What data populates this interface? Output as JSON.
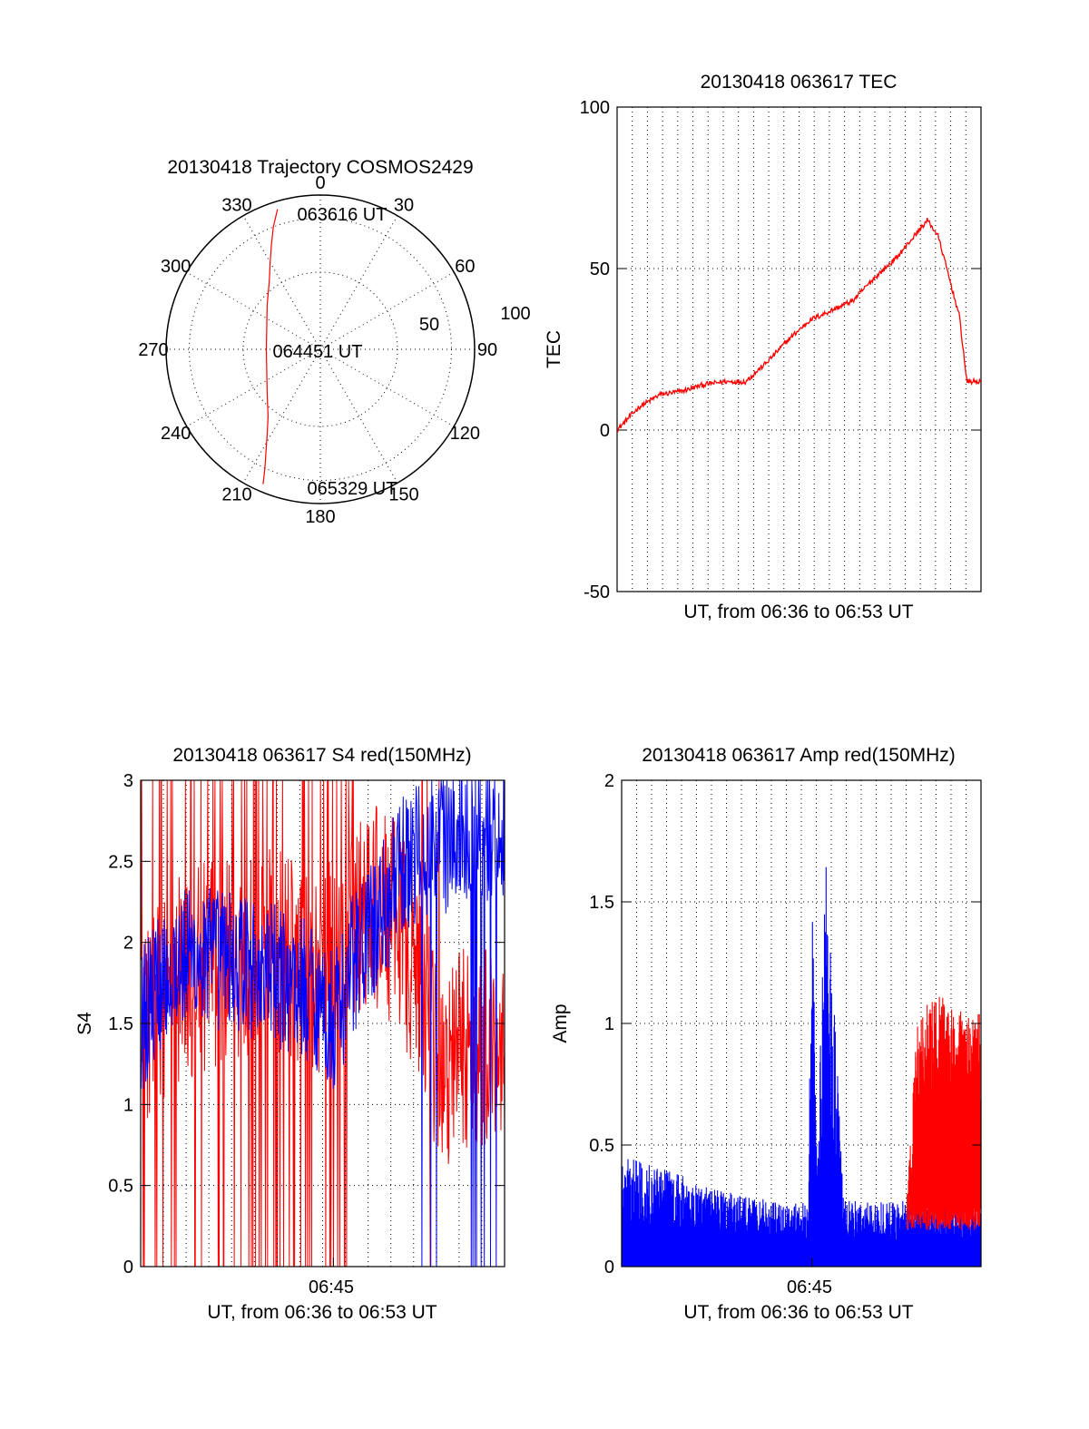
{
  "colors": {
    "red": "#ff0000",
    "blue": "#0000ff",
    "axis": "#000000"
  },
  "chart_data": [
    {
      "id": "trajectory",
      "type": "polar",
      "title": "20130418 Trajectory COSMOS2429",
      "angle_labels": [
        "0",
        "30",
        "60",
        "90",
        "120",
        "150",
        "180",
        "210",
        "240",
        "270",
        "300",
        "330"
      ],
      "radial_ticks": [
        "50",
        "100"
      ],
      "rlim": [
        0,
        100
      ],
      "grid": true,
      "series": [
        {
          "color": "red",
          "points": [
            [
              343,
              95
            ],
            [
              339,
              85
            ],
            [
              335,
              75
            ],
            [
              330,
              65
            ],
            [
              323,
              55
            ],
            [
              310,
              45
            ],
            [
              290,
              37
            ],
            [
              270,
              35
            ],
            [
              250,
              37
            ],
            [
              230,
              45
            ],
            [
              218,
              55
            ],
            [
              212,
              65
            ],
            [
              208,
              75
            ],
            [
              205,
              85
            ],
            [
              203,
              95
            ]
          ]
        }
      ],
      "annotations": [
        {
          "text": "063616 UT",
          "az": 8,
          "el": 85
        },
        {
          "text": "064451 UT",
          "az": 269,
          "el": 72
        },
        {
          "text": "065329 UT",
          "az": 172,
          "el": 82
        }
      ]
    },
    {
      "id": "tec",
      "type": "line",
      "title": "20130418 063617 TEC",
      "xlabel": "UT, from 06:36 to 06:53 UT",
      "ylabel": "TEC",
      "xlim": [
        "06:36",
        "06:53"
      ],
      "ylim": [
        -50,
        100
      ],
      "yticks": [
        "-50",
        "0",
        "50",
        "100"
      ],
      "grid": true,
      "series": [
        {
          "color": "red",
          "points": [
            [
              "06:36",
              0
            ],
            [
              "06:37",
              7
            ],
            [
              "06:38",
              11
            ],
            [
              "06:39",
              12
            ],
            [
              "06:40",
              14
            ],
            [
              "06:41",
              15
            ],
            [
              "06:42",
              15
            ],
            [
              "06:43",
              21
            ],
            [
              "06:44",
              28
            ],
            [
              "06:45",
              34
            ],
            [
              "06:46",
              37
            ],
            [
              "06:47",
              40
            ],
            [
              "06:48",
              47
            ],
            [
              "06:49",
              53
            ],
            [
              "06:50",
              61
            ],
            [
              "06:50:30",
              65
            ],
            [
              "06:51",
              60
            ],
            [
              "06:52",
              35
            ],
            [
              "06:52:20",
              15
            ],
            [
              "06:53",
              15
            ]
          ]
        }
      ]
    },
    {
      "id": "s4",
      "type": "line",
      "title": "20130418 063617 S4 red(150MHz)",
      "xlabel": "UT, from 06:36 to 06:53 UT",
      "ylabel": "S4",
      "xlim": [
        "06:36",
        "06:53"
      ],
      "ylim": [
        0,
        3
      ],
      "yticks": [
        "0",
        "0.5",
        "1",
        "1.5",
        "2",
        "2.5",
        "3"
      ],
      "xticks": [
        "06:45"
      ],
      "grid": true,
      "series": [
        {
          "color": "red",
          "envelope": [
            [
              "06:36",
              1.5
            ],
            [
              "06:38",
              1.8
            ],
            [
              "06:40",
              1.9
            ],
            [
              "06:42",
              2.0
            ],
            [
              "06:44",
              1.8
            ],
            [
              "06:45",
              1.9
            ],
            [
              "06:46",
              2.1
            ],
            [
              "06:47",
              2.2
            ],
            [
              "06:48",
              2.1
            ],
            [
              "06:49",
              1.8
            ],
            [
              "06:50",
              1.1
            ],
            [
              "06:51",
              1.4
            ],
            [
              "06:52",
              1.3
            ],
            [
              "06:53",
              1.5
            ]
          ],
          "dropouts": [
            "06:36-06:46",
            "06:49-06:50"
          ]
        },
        {
          "color": "blue",
          "envelope": [
            [
              "06:36",
              1.5
            ],
            [
              "06:37",
              1.8
            ],
            [
              "06:38",
              1.9
            ],
            [
              "06:40",
              1.9
            ],
            [
              "06:42",
              1.8
            ],
            [
              "06:44",
              1.7
            ],
            [
              "06:44:30",
              1.6
            ],
            [
              "06:45",
              1.5
            ],
            [
              "06:46",
              1.9
            ],
            [
              "06:47",
              2.1
            ],
            [
              "06:48",
              2.4
            ],
            [
              "06:49",
              2.6
            ],
            [
              "06:50",
              2.6
            ],
            [
              "06:51",
              2.7
            ],
            [
              "06:52",
              2.7
            ],
            [
              "06:53",
              2.7
            ]
          ]
        }
      ]
    },
    {
      "id": "amp",
      "type": "line",
      "title": "20130418 063617 Amp red(150MHz)",
      "xlabel": "UT, from 06:36 to 06:53 UT",
      "ylabel": "Amp",
      "xlim": [
        "06:36",
        "06:53"
      ],
      "ylim": [
        0,
        2
      ],
      "yticks": [
        "0",
        "0.5",
        "1",
        "1.5",
        "2"
      ],
      "xticks": [
        "06:45"
      ],
      "grid": true,
      "series": [
        {
          "color": "blue",
          "envelope": [
            [
              "06:36",
              0.35
            ],
            [
              "06:38",
              0.3
            ],
            [
              "06:40",
              0.25
            ],
            [
              "06:42",
              0.22
            ],
            [
              "06:43",
              0.2
            ],
            [
              "06:44",
              0.2
            ],
            [
              "06:44:50",
              0.2
            ],
            [
              "06:45",
              1.2
            ],
            [
              "06:45:15",
              0.3
            ],
            [
              "06:45:40",
              1.3
            ],
            [
              "06:46",
              0.9
            ],
            [
              "06:46:30",
              0.2
            ],
            [
              "06:48",
              0.2
            ],
            [
              "06:50",
              0.2
            ],
            [
              "06:53",
              0.2
            ]
          ]
        },
        {
          "color": "red",
          "envelope": [
            [
              "06:49:30",
              0.2
            ],
            [
              "06:50",
              0.7
            ],
            [
              "06:51",
              0.75
            ],
            [
              "06:52",
              0.7
            ],
            [
              "06:53",
              0.7
            ]
          ]
        }
      ]
    }
  ]
}
